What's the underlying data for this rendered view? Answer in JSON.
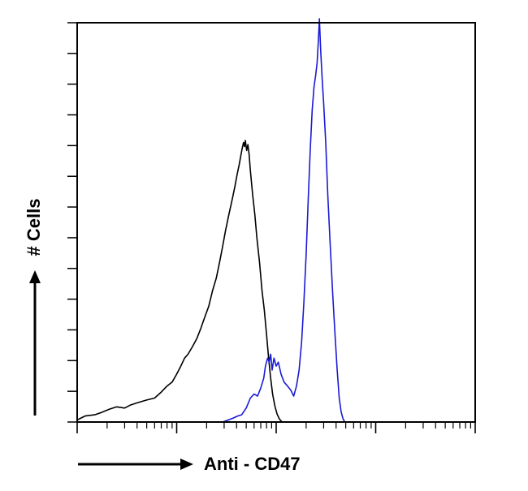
{
  "chart_data": {
    "type": "line",
    "title": "",
    "xlabel": "Anti - CD47",
    "ylabel": "# Cells",
    "x_scale": "log",
    "xlim": [
      1,
      10000
    ],
    "ylim": [
      0,
      100
    ],
    "y_tick_count": 14,
    "grid": false,
    "legend": "none",
    "series": [
      {
        "color": "#000000",
        "points": [
          [
            1.0,
            0.5
          ],
          [
            1.2,
            1.5
          ],
          [
            1.5,
            1.8
          ],
          [
            1.8,
            2.5
          ],
          [
            2.1,
            3.2
          ],
          [
            2.5,
            3.8
          ],
          [
            3.0,
            3.5
          ],
          [
            3.4,
            4.2
          ],
          [
            4.0,
            4.8
          ],
          [
            5.0,
            5.5
          ],
          [
            6.0,
            6.0
          ],
          [
            7.0,
            7.5
          ],
          [
            8.0,
            9.0
          ],
          [
            9.0,
            10.0
          ],
          [
            10.0,
            12.0
          ],
          [
            11.0,
            14.0
          ],
          [
            12.0,
            16.0
          ],
          [
            13.0,
            17.0
          ],
          [
            14.5,
            19.0
          ],
          [
            16.0,
            21.0
          ],
          [
            17.5,
            23.5
          ],
          [
            19.0,
            26.0
          ],
          [
            21.0,
            29.0
          ],
          [
            23.0,
            33.0
          ],
          [
            25.0,
            36.0
          ],
          [
            27.0,
            40.0
          ],
          [
            29.0,
            44.0
          ],
          [
            31.0,
            48.0
          ],
          [
            33.5,
            52.0
          ],
          [
            36.0,
            55.5
          ],
          [
            38.5,
            59.0
          ],
          [
            40.5,
            62.0
          ],
          [
            42.5,
            64.5
          ],
          [
            44.0,
            66.5
          ],
          [
            45.5,
            68.5
          ],
          [
            47.0,
            70.0
          ],
          [
            48.0,
            69.0
          ],
          [
            49.0,
            70.5
          ],
          [
            50.5,
            68.0
          ],
          [
            52.0,
            69.5
          ],
          [
            53.5,
            67.0
          ],
          [
            55.0,
            63.0
          ],
          [
            58.0,
            57.0
          ],
          [
            61.0,
            52.0
          ],
          [
            64.0,
            46.0
          ],
          [
            68.0,
            40.0
          ],
          [
            72.0,
            33.0
          ],
          [
            76.0,
            28.0
          ],
          [
            80.0,
            22.0
          ],
          [
            84.0,
            16.0
          ],
          [
            88.0,
            11.0
          ],
          [
            92.0,
            7.0
          ],
          [
            97.0,
            4.0
          ],
          [
            102.0,
            2.0
          ],
          [
            108.0,
            0.7
          ],
          [
            115.0,
            0.0
          ]
        ]
      },
      {
        "color": "#1a1ad4",
        "points": [
          [
            29.0,
            0.0
          ],
          [
            33.0,
            0.5
          ],
          [
            37.0,
            1.0
          ],
          [
            41.0,
            1.5
          ],
          [
            45.0,
            1.8
          ],
          [
            50.0,
            3.5
          ],
          [
            55.0,
            6.0
          ],
          [
            60.0,
            7.0
          ],
          [
            65.0,
            6.5
          ],
          [
            70.0,
            8.5
          ],
          [
            75.0,
            11.0
          ],
          [
            78.0,
            14.0
          ],
          [
            82.0,
            16.0
          ],
          [
            85.0,
            15.0
          ],
          [
            88.0,
            17.0
          ],
          [
            91.0,
            13.0
          ],
          [
            95.0,
            16.0
          ],
          [
            100.0,
            14.0
          ],
          [
            105.0,
            15.0
          ],
          [
            112.0,
            12.0
          ],
          [
            120.0,
            10.0
          ],
          [
            130.0,
            9.0
          ],
          [
            140.0,
            8.0
          ],
          [
            150.0,
            6.5
          ],
          [
            160.0,
            9.0
          ],
          [
            170.0,
            13.0
          ],
          [
            180.0,
            20.0
          ],
          [
            190.0,
            30.0
          ],
          [
            200.0,
            42.0
          ],
          [
            210.0,
            56.0
          ],
          [
            220.0,
            68.0
          ],
          [
            230.0,
            78.0
          ],
          [
            240.0,
            84.0
          ],
          [
            250.0,
            87.0
          ],
          [
            258.0,
            90.0
          ],
          [
            265.0,
            95.0
          ],
          [
            272.0,
            101.0
          ],
          [
            280.0,
            93.0
          ],
          [
            290.0,
            86.0
          ],
          [
            300.0,
            80.0
          ],
          [
            315.0,
            70.0
          ],
          [
            330.0,
            57.0
          ],
          [
            350.0,
            44.0
          ],
          [
            370.0,
            32.0
          ],
          [
            390.0,
            22.0
          ],
          [
            410.0,
            13.0
          ],
          [
            430.0,
            6.0
          ],
          [
            450.0,
            2.5
          ],
          [
            470.0,
            0.8
          ],
          [
            490.0,
            0.0
          ]
        ]
      }
    ]
  }
}
